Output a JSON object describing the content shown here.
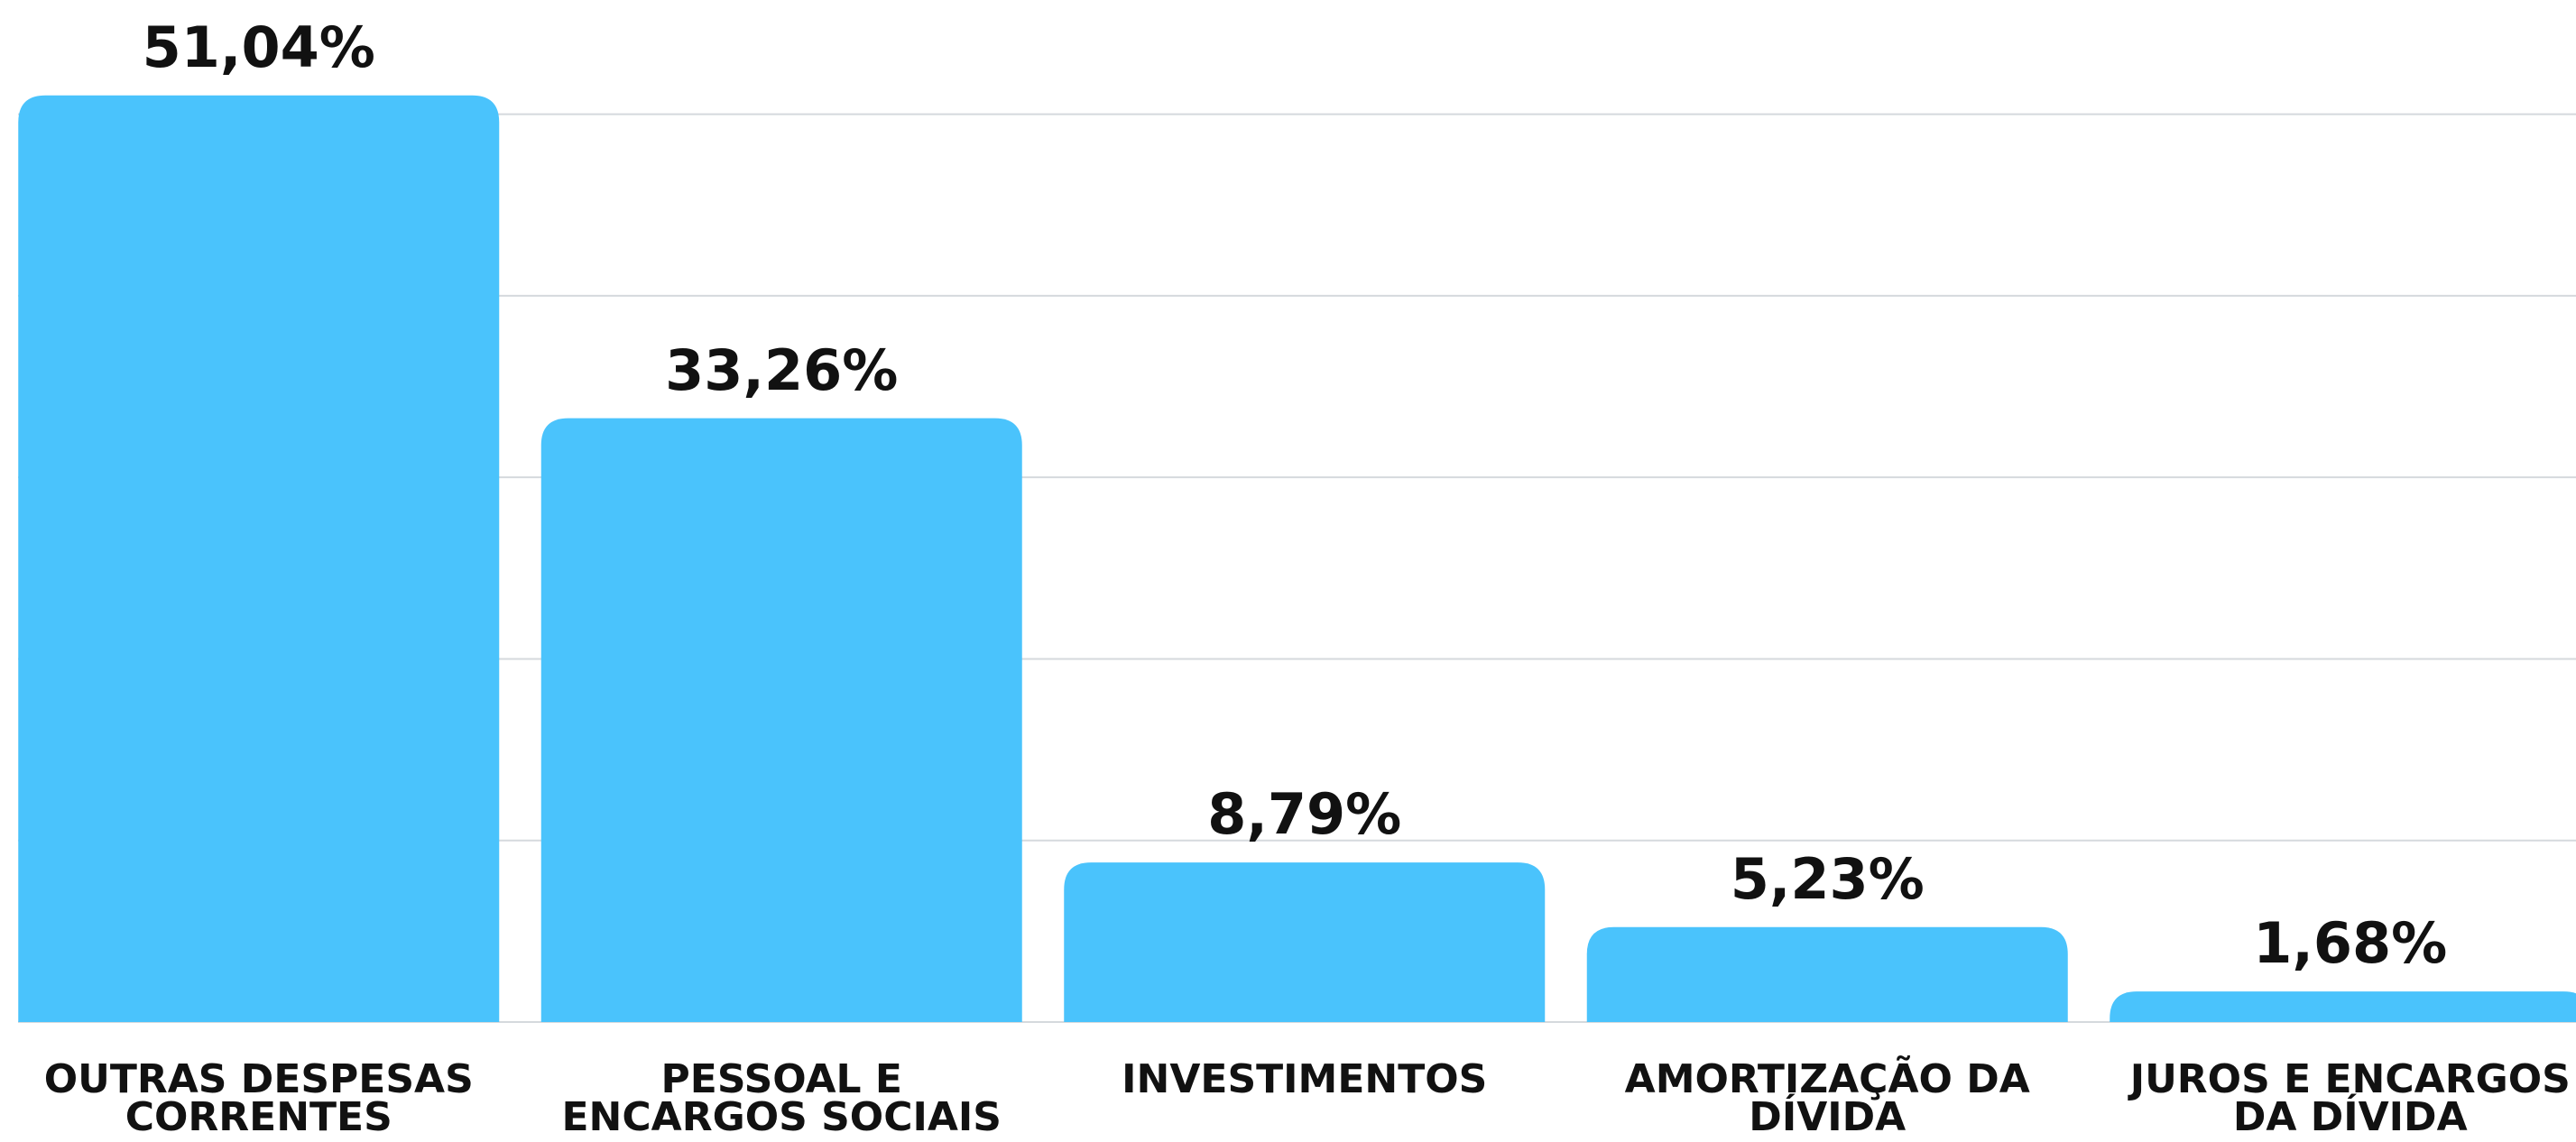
{
  "chart_data": {
    "type": "bar",
    "categories": [
      "OUTRAS DESPESAS\nCORRENTES",
      "PESSOAL E\nENCARGOS SOCIAIS",
      "INVESTIMENTOS",
      "AMORTIZAÇÃO DA\nDÍVIDA",
      "JUROS E ENCARGOS\nDA DÍVIDA"
    ],
    "values": [
      51.04,
      33.26,
      8.79,
      5.23,
      1.68
    ],
    "value_labels": [
      "51,04%",
      "33,26%",
      "8,79%",
      "5,23%",
      "1,68%"
    ],
    "color": "#4ac3fc",
    "ylim": [
      0,
      55
    ],
    "yticks": [
      0,
      10,
      20,
      30,
      40,
      50
    ],
    "grid": true
  }
}
